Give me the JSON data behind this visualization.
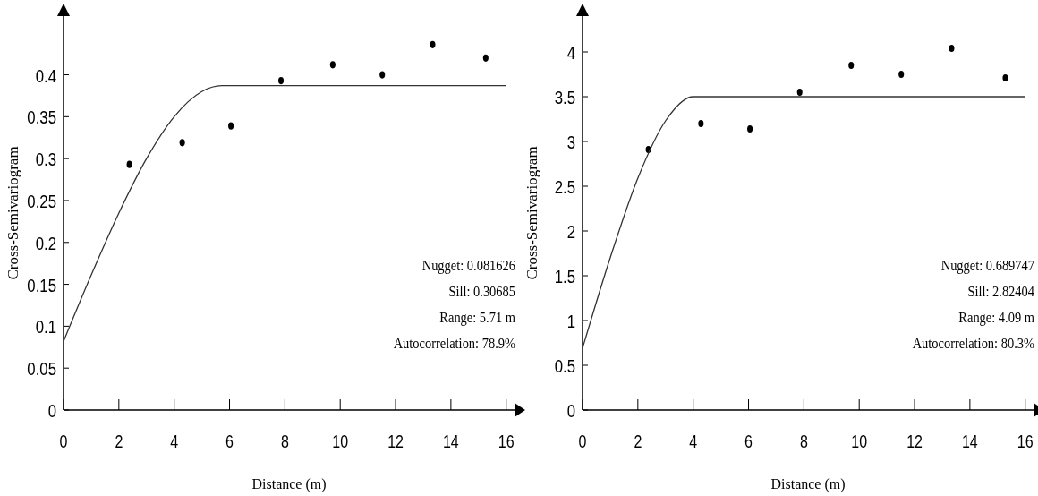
{
  "chart_data": [
    {
      "type": "scatter",
      "xlabel": "Distance (m)",
      "ylabel": "Cross-Semivariogram",
      "xlim": [
        0,
        16.3
      ],
      "ylim": [
        0,
        0.47
      ],
      "xticks": [
        0,
        2,
        4,
        6,
        8,
        10,
        12,
        14,
        16
      ],
      "yticks": [
        0,
        0.05,
        0.1,
        0.15,
        0.2,
        0.25,
        0.3,
        0.35,
        0.4
      ],
      "grid": false,
      "series": [
        {
          "marker": "circle",
          "color": "#000000",
          "x": [
            2.38,
            4.29,
            6.05,
            7.86,
            9.73,
            11.52,
            13.34,
            15.26
          ],
          "values": [
            0.293,
            0.319,
            0.339,
            0.393,
            0.412,
            0.4,
            0.436,
            0.42
          ]
        },
        {
          "type": "line",
          "color": "#333333",
          "x": [
            0,
            1,
            2,
            3,
            4,
            5,
            5.71,
            16
          ],
          "values": [
            0.082,
            0.161,
            0.235,
            0.3,
            0.35,
            0.38,
            0.387,
            0.387
          ]
        }
      ],
      "annotations": [
        "Nugget: 0.081626",
        "Sill: 0.30685",
        "Range: 5.71 m",
        "Autocorrelation: 78.9%"
      ]
    },
    {
      "type": "scatter",
      "xlabel": "Distance (m)",
      "ylabel": "Cross-Semivariogram",
      "xlim": [
        0,
        16.3
      ],
      "ylim": [
        0,
        4.4
      ],
      "xticks": [
        0,
        2,
        4,
        6,
        8,
        10,
        12,
        14,
        16
      ],
      "yticks": [
        0,
        0.5,
        1,
        1.5,
        2,
        2.5,
        3,
        3.5,
        4
      ],
      "grid": false,
      "series": [
        {
          "marker": "circle",
          "color": "#000000",
          "x": [
            2.38,
            4.28,
            6.05,
            7.85,
            9.71,
            11.52,
            13.34,
            15.28
          ],
          "values": [
            2.91,
            3.2,
            3.14,
            3.55,
            3.85,
            3.75,
            4.04,
            3.71
          ]
        },
        {
          "type": "line",
          "color": "#333333",
          "x": [
            0,
            1,
            2,
            3,
            4,
            4.09,
            16
          ],
          "values": [
            0.69,
            1.7,
            2.59,
            3.23,
            3.5,
            3.5,
            3.5
          ]
        }
      ],
      "annotations": [
        "Nugget: 0.689747",
        "Sill: 2.82404",
        "Range: 4.09 m",
        "Autocorrelation: 80.3%"
      ]
    }
  ]
}
